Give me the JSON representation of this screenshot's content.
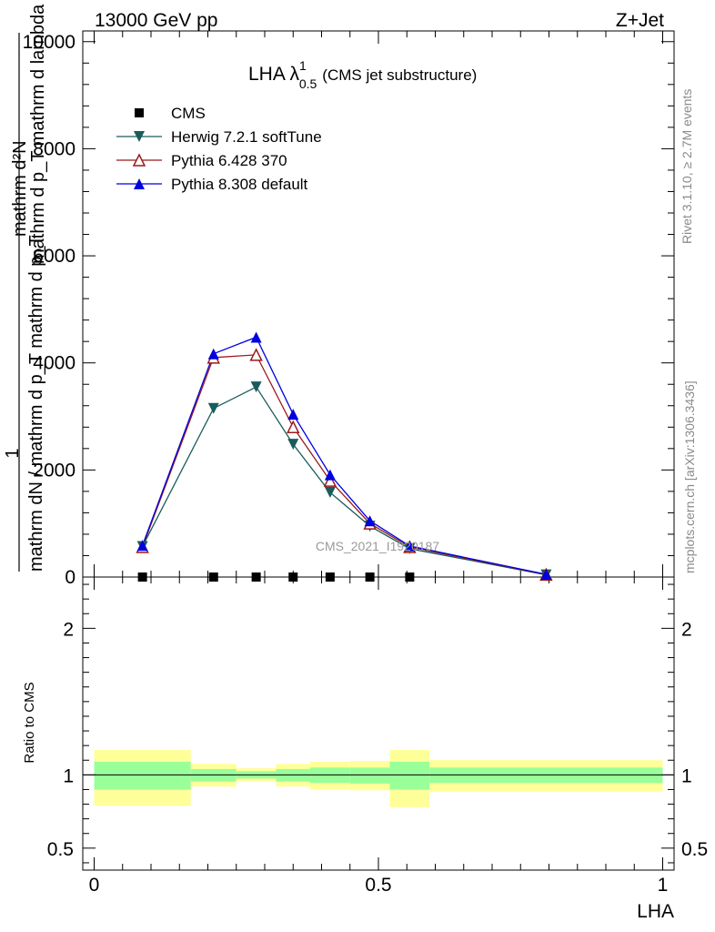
{
  "header": {
    "energy_label": "13000 GeV pp",
    "process_label": "Z+Jet"
  },
  "plot_title": {
    "main": "LHA λ",
    "superscript": "1",
    "subscript": "0.5",
    "suffix": "(CMS jet substructure)"
  },
  "side_labels": {
    "rivet": "Rivet 3.1.10, ≥ 2.7M events",
    "mcplots": "mcplots.cern.ch [arXiv:1306.3436]"
  },
  "watermark": "CMS_2021_I1920187",
  "y_label_main": {
    "prefix": "1",
    "line1": "mathrm dN / mathrm d p_T mathrm d p_T",
    "line2": "mathrm dN / mathrm d p",
    "numerator": "mathrm d²N",
    "denominator": "mathrm d p_T mathrm d lambda",
    "line3": "T mathrm d lambda",
    "sub_t": "T"
  },
  "ratio_label": "Ratio to CMS",
  "x_label": "LHA",
  "colors": {
    "herwig": "#1a5c5c",
    "pythia6": "#9b1b1b",
    "pythia8": "#0000e0",
    "band_inner": "#99ff99",
    "band_outer": "#ffff99"
  },
  "chart_data": [
    {
      "type": "line",
      "xlim": [
        -0.02,
        1.02
      ],
      "ylim": [
        0,
        10200
      ],
      "yticks": [
        0,
        2000,
        4000,
        6000,
        8000,
        10000
      ],
      "ytick_labels": [
        "0",
        "2000",
        "4000",
        "6000",
        "8000",
        "10000"
      ],
      "xticks": [
        0,
        0.5,
        1
      ],
      "legend_position": "top-left",
      "series": [
        {
          "name": "CMS",
          "marker": "square",
          "x": [
            0.085,
            0.21,
            0.285,
            0.35,
            0.415,
            0.485,
            0.555
          ],
          "y": [
            0,
            0,
            0,
            0,
            0,
            0,
            0
          ]
        },
        {
          "name": "Herwig 7.2.1 softTune",
          "marker": "triangle-down",
          "x": [
            0.085,
            0.21,
            0.285,
            0.35,
            0.415,
            0.485,
            0.555,
            0.795
          ],
          "y": [
            570,
            3150,
            3550,
            2480,
            1580,
            950,
            530,
            40
          ]
        },
        {
          "name": "Pythia 6.428 370",
          "marker": "triangle-up-open",
          "x": [
            0.085,
            0.21,
            0.285,
            0.35,
            0.415,
            0.485,
            0.555,
            0.795
          ],
          "y": [
            560,
            4100,
            4150,
            2800,
            1800,
            1000,
            560,
            45
          ]
        },
        {
          "name": "Pythia 8.308 default",
          "marker": "triangle-up",
          "x": [
            0.085,
            0.21,
            0.285,
            0.35,
            0.415,
            0.485,
            0.555,
            0.795
          ],
          "y": [
            590,
            4170,
            4480,
            3040,
            1910,
            1050,
            580,
            50
          ]
        }
      ]
    },
    {
      "type": "area",
      "ylabel": "Ratio to CMS",
      "xlabel": "LHA",
      "xlim": [
        -0.02,
        1.02
      ],
      "ylim": [
        0.35,
        2.35
      ],
      "yticks": [
        0.5,
        1,
        2
      ],
      "ytick_labels": [
        "0.5",
        "1",
        "2"
      ],
      "xticks": [
        0,
        0.5,
        1
      ],
      "xtick_labels": [
        "0",
        "0.5",
        "1"
      ],
      "reference_line": 1,
      "bins": [
        {
          "x0": 0.0,
          "x1": 0.17,
          "inner": [
            0.9,
            1.09
          ],
          "outer": [
            0.79,
            1.17
          ]
        },
        {
          "x0": 0.17,
          "x1": 0.25,
          "inner": [
            0.955,
            1.04
          ],
          "outer": [
            0.92,
            1.075
          ]
        },
        {
          "x0": 0.25,
          "x1": 0.32,
          "inner": [
            0.975,
            1.025
          ],
          "outer": [
            0.955,
            1.045
          ]
        },
        {
          "x0": 0.32,
          "x1": 0.38,
          "inner": [
            0.955,
            1.04
          ],
          "outer": [
            0.92,
            1.075
          ]
        },
        {
          "x0": 0.38,
          "x1": 0.45,
          "inner": [
            0.945,
            1.05
          ],
          "outer": [
            0.9,
            1.09
          ]
        },
        {
          "x0": 0.45,
          "x1": 0.52,
          "inner": [
            0.94,
            1.05
          ],
          "outer": [
            0.895,
            1.095
          ]
        },
        {
          "x0": 0.52,
          "x1": 0.59,
          "inner": [
            0.9,
            1.09
          ],
          "outer": [
            0.78,
            1.17
          ]
        },
        {
          "x0": 0.59,
          "x1": 1.0,
          "inner": [
            0.945,
            1.05
          ],
          "outer": [
            0.885,
            1.1
          ]
        }
      ]
    }
  ]
}
